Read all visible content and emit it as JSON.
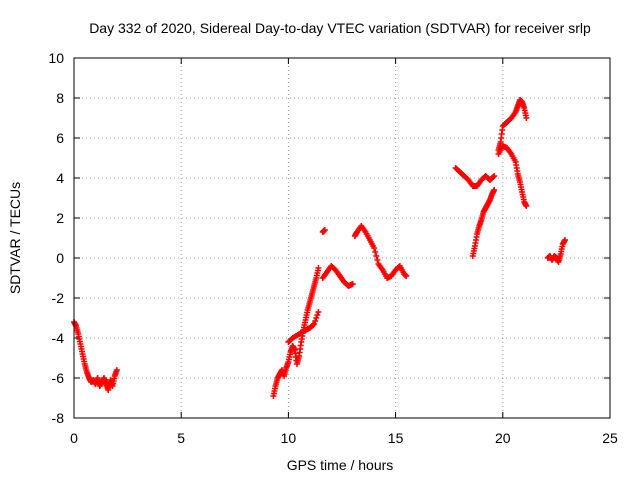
{
  "chart_data": {
    "type": "scatter",
    "title": "Day 332 of 2020, Sidereal Day-to-day VTEC variation (SDTVAR) for receiver srlp",
    "xlabel": "GPS time / hours",
    "ylabel": "SDTVAR / TECUs",
    "xlim": [
      0,
      25
    ],
    "ylim": [
      -8,
      10
    ],
    "xticks": [
      "0",
      "5",
      "10",
      "15",
      "20",
      "25"
    ],
    "yticks": [
      "-8",
      "-6",
      "-4",
      "-2",
      "0",
      "2",
      "4",
      "6",
      "8",
      "10"
    ],
    "grid": true,
    "marker": "+",
    "series": [
      {
        "name": "SDTVAR",
        "color": "#ff0000",
        "segments": [
          [
            [
              0.0,
              -3.2
            ],
            [
              0.1,
              -3.4
            ],
            [
              0.2,
              -3.8
            ],
            [
              0.3,
              -4.3
            ],
            [
              0.4,
              -4.8
            ],
            [
              0.5,
              -5.3
            ],
            [
              0.6,
              -5.7
            ],
            [
              0.7,
              -6.0
            ],
            [
              0.8,
              -6.2
            ],
            [
              0.9,
              -6.1
            ],
            [
              1.0,
              -6.3
            ],
            [
              1.1,
              -6.0
            ],
            [
              1.2,
              -6.4
            ],
            [
              1.3,
              -6.2
            ],
            [
              1.4,
              -6.0
            ],
            [
              1.5,
              -6.3
            ],
            [
              1.6,
              -6.6
            ],
            [
              1.7,
              -6.1
            ],
            [
              1.8,
              -6.4
            ],
            [
              1.9,
              -5.9
            ],
            [
              2.0,
              -5.6
            ]
          ],
          [
            [
              9.3,
              -6.9
            ],
            [
              9.4,
              -6.4
            ],
            [
              9.5,
              -6.0
            ],
            [
              9.6,
              -5.8
            ],
            [
              9.7,
              -5.6
            ],
            [
              9.8,
              -5.9
            ],
            [
              9.9,
              -5.5
            ],
            [
              10.0,
              -5.2
            ],
            [
              10.1,
              -4.7
            ],
            [
              10.2,
              -4.4
            ],
            [
              10.3,
              -4.6
            ],
            [
              10.4,
              -5.3
            ],
            [
              10.5,
              -4.9
            ],
            [
              10.6,
              -4.2
            ],
            [
              10.7,
              -3.6
            ],
            [
              10.8,
              -3.1
            ],
            [
              10.9,
              -2.6
            ],
            [
              11.0,
              -2.2
            ],
            [
              11.1,
              -1.8
            ],
            [
              11.2,
              -1.4
            ],
            [
              11.3,
              -1.0
            ],
            [
              11.4,
              -0.5
            ]
          ],
          [
            [
              10.0,
              -4.2
            ],
            [
              10.2,
              -4.0
            ],
            [
              10.5,
              -3.8
            ],
            [
              10.8,
              -3.6
            ],
            [
              11.0,
              -3.5
            ],
            [
              11.2,
              -3.3
            ],
            [
              11.4,
              -2.7
            ]
          ],
          [
            [
              11.6,
              1.3
            ],
            [
              11.7,
              1.4
            ]
          ],
          [
            [
              11.6,
              -1.0
            ],
            [
              11.8,
              -0.7
            ],
            [
              12.0,
              -0.4
            ],
            [
              12.2,
              -0.6
            ],
            [
              12.4,
              -0.9
            ],
            [
              12.6,
              -1.2
            ],
            [
              12.8,
              -1.4
            ],
            [
              13.0,
              -1.3
            ]
          ],
          [
            [
              13.1,
              1.1
            ],
            [
              13.2,
              1.3
            ],
            [
              13.4,
              1.6
            ],
            [
              13.6,
              1.3
            ],
            [
              13.8,
              0.9
            ],
            [
              14.0,
              0.5
            ],
            [
              14.2,
              -0.3
            ],
            [
              14.4,
              -0.6
            ],
            [
              14.6,
              -1.0
            ],
            [
              14.8,
              -0.9
            ],
            [
              15.0,
              -0.6
            ],
            [
              15.2,
              -0.4
            ],
            [
              15.4,
              -0.8
            ],
            [
              15.5,
              -0.9
            ]
          ],
          [
            [
              17.8,
              4.5
            ],
            [
              18.0,
              4.3
            ],
            [
              18.2,
              4.1
            ],
            [
              18.4,
              3.9
            ],
            [
              18.6,
              3.6
            ],
            [
              18.8,
              3.6
            ],
            [
              19.0,
              3.9
            ],
            [
              19.2,
              4.1
            ],
            [
              19.4,
              3.9
            ],
            [
              19.6,
              4.1
            ]
          ],
          [
            [
              18.6,
              0.1
            ],
            [
              18.7,
              0.6
            ],
            [
              18.8,
              1.2
            ],
            [
              18.9,
              1.6
            ],
            [
              19.0,
              1.9
            ],
            [
              19.1,
              2.3
            ],
            [
              19.2,
              2.5
            ],
            [
              19.3,
              2.7
            ],
            [
              19.4,
              2.9
            ],
            [
              19.5,
              3.2
            ],
            [
              19.6,
              3.4
            ]
          ],
          [
            [
              19.8,
              5.4
            ],
            [
              19.9,
              5.8
            ],
            [
              20.0,
              6.6
            ],
            [
              20.2,
              6.8
            ],
            [
              20.4,
              7.0
            ],
            [
              20.6,
              7.3
            ],
            [
              20.7,
              7.6
            ],
            [
              20.8,
              7.9
            ],
            [
              20.9,
              7.8
            ],
            [
              21.0,
              7.5
            ],
            [
              21.1,
              7.0
            ]
          ],
          [
            [
              19.8,
              5.2
            ],
            [
              20.0,
              5.6
            ],
            [
              20.2,
              5.5
            ],
            [
              20.4,
              5.2
            ],
            [
              20.6,
              4.8
            ],
            [
              20.7,
              4.2
            ],
            [
              20.8,
              3.8
            ],
            [
              20.9,
              3.3
            ],
            [
              21.0,
              2.8
            ],
            [
              21.1,
              2.6
            ]
          ],
          [
            [
              22.1,
              0.0
            ],
            [
              22.2,
              0.1
            ],
            [
              22.3,
              -0.1
            ],
            [
              22.4,
              0.1
            ],
            [
              22.5,
              0.0
            ],
            [
              22.6,
              -0.2
            ],
            [
              22.7,
              0.2
            ],
            [
              22.8,
              0.7
            ],
            [
              22.9,
              0.9
            ]
          ]
        ]
      }
    ]
  }
}
